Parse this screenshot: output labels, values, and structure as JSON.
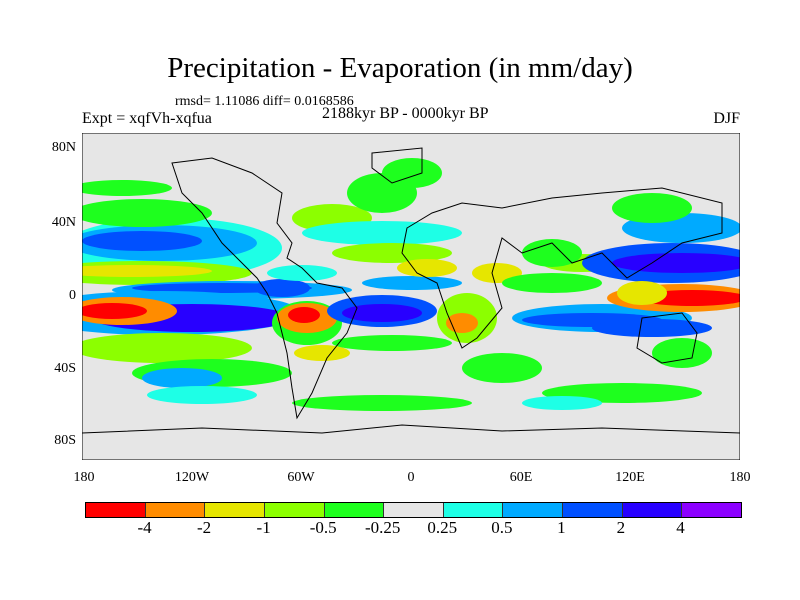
{
  "title": "Precipitation - Evaporation (in mm/day)",
  "stats": "rmsd= 1.11086 diff= 0.0168586",
  "experiment": "Expt = xqfVh-xqfua",
  "period": "2188kyr BP - 0000kyr BP",
  "season": "DJF",
  "lat_labels": [
    "80N",
    "40N",
    "0",
    "40S",
    "80S"
  ],
  "lon_labels": [
    "180",
    "120W",
    "60W",
    "0",
    "60E",
    "120E",
    "180"
  ],
  "colorbar": {
    "colors": [
      "#ff0000",
      "#ff8c00",
      "#e6e600",
      "#8cff00",
      "#1eff1e",
      "#e6e6e6",
      "#1effe6",
      "#00aaff",
      "#0050ff",
      "#2800ff",
      "#8c00ff"
    ],
    "labels": [
      "-4",
      "-2",
      "-1",
      "-0.5",
      "-0.25",
      "0.25",
      "0.5",
      "1",
      "2",
      "4"
    ]
  }
}
